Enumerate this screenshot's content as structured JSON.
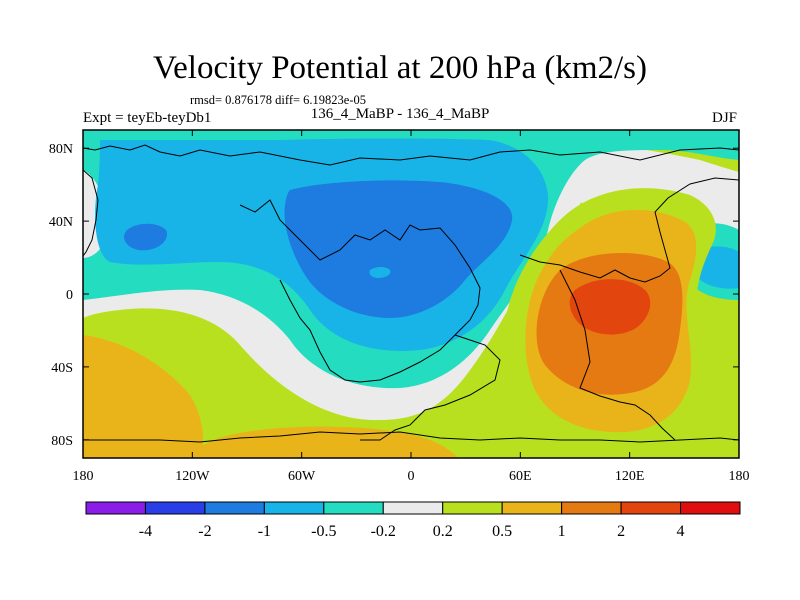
{
  "title": "Velocity Potential at 200 hPa (km2/s)",
  "stats": "rmsd= 0.876178 diff= 6.19823e-05",
  "experiment": "Expt = teyEb-teyDb1",
  "cases": "136_4_MaBP - 136_4_MaBP",
  "season": "DJF",
  "map": {
    "lon_ticks": [
      "180",
      "120W",
      "60W",
      "0",
      "60E",
      "120E",
      "180"
    ],
    "lon_values": [
      -180,
      -120,
      -60,
      0,
      60,
      120,
      180
    ],
    "lat_ticks": [
      "80N",
      "40N",
      "0",
      "40S",
      "80S"
    ],
    "lat_values": [
      80,
      40,
      0,
      -40,
      -80
    ],
    "lat_range": [
      -90,
      90
    ],
    "lon_range": [
      -180,
      180
    ]
  },
  "colorbar": {
    "labels": [
      "-4",
      "-2",
      "-1",
      "-0.5",
      "-0.2",
      "0.2",
      "0.5",
      "1",
      "2",
      "4"
    ],
    "colors": [
      "#8a1ee8",
      "#2a3ee8",
      "#1e7be0",
      "#18b4e8",
      "#24dcc0",
      "#ebebeb",
      "#b9e01e",
      "#e8b41a",
      "#e67a12",
      "#e2460e",
      "#e00e0e"
    ]
  }
}
